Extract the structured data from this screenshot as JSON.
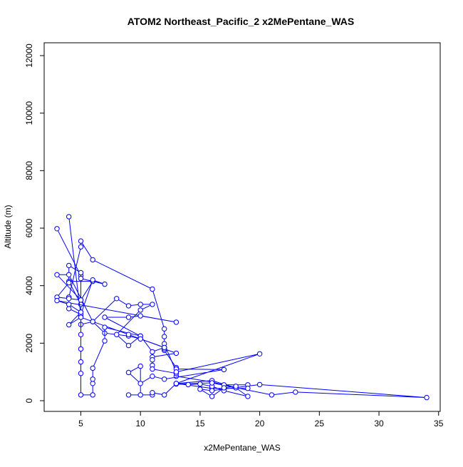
{
  "chart_data": {
    "type": "line",
    "title": "ATOM2 Northeast_Pacific_2 x2MePentane_WAS",
    "xlabel": "x2MePentane_WAS",
    "ylabel": "Altitude (m)",
    "xlim": [
      2.5,
      34.5
    ],
    "ylim": [
      0,
      12000
    ],
    "xticks": [
      5,
      10,
      15,
      20,
      25,
      30,
      35
    ],
    "yticks": [
      0,
      2000,
      4000,
      6000,
      8000,
      10000,
      12000
    ],
    "grid": false,
    "legend": "none",
    "series_color": "#0000ff",
    "series": [
      {
        "points": [
          [
            3,
            5980
          ],
          [
            5,
            4350
          ],
          [
            5,
            3350
          ],
          [
            4,
            4150
          ],
          [
            6,
            4150
          ],
          [
            5,
            3500
          ],
          [
            5,
            2650
          ],
          [
            6,
            2750
          ],
          [
            7,
            2350
          ],
          [
            9,
            2250
          ],
          [
            10,
            2150
          ],
          [
            12,
            1850
          ],
          [
            12,
            1750
          ],
          [
            13,
            1150
          ],
          [
            13,
            850
          ],
          [
            16,
            650
          ],
          [
            17,
            550
          ],
          [
            19,
            550
          ],
          [
            19,
            430
          ],
          [
            16,
            430
          ],
          [
            13,
            600
          ],
          [
            16,
            700
          ],
          [
            18,
            450
          ],
          [
            19,
            150
          ],
          [
            17,
            350
          ],
          [
            16,
            500
          ],
          [
            15,
            580
          ],
          [
            14,
            560
          ],
          [
            13,
            580
          ],
          [
            16,
            620
          ],
          [
            21,
            200
          ],
          [
            23,
            300
          ],
          [
            34,
            110
          ],
          [
            20,
            560
          ],
          [
            16,
            350
          ],
          [
            15,
            400
          ],
          [
            16,
            150
          ],
          [
            17,
            450
          ],
          [
            18,
            500
          ]
        ]
      },
      {
        "points": [
          [
            4,
            6400
          ],
          [
            5,
            2950
          ],
          [
            5,
            2300
          ],
          [
            5,
            1800
          ],
          [
            5,
            1350
          ],
          [
            5,
            950
          ],
          [
            5,
            200
          ],
          [
            6,
            200
          ],
          [
            6,
            600
          ],
          [
            6,
            750
          ],
          [
            6,
            1130
          ],
          [
            7,
            2080
          ],
          [
            7,
            2550
          ],
          [
            10,
            2250
          ],
          [
            11,
            1700
          ],
          [
            12,
            1850
          ],
          [
            12,
            1800
          ],
          [
            13,
            1650
          ],
          [
            11,
            1520
          ],
          [
            11,
            1420
          ],
          [
            11,
            1230
          ],
          [
            11,
            1100
          ],
          [
            13,
            950
          ],
          [
            13,
            1100
          ],
          [
            17,
            1080
          ],
          [
            12,
            750
          ],
          [
            11,
            850
          ],
          [
            10,
            600
          ],
          [
            9,
            980
          ],
          [
            10,
            1200
          ],
          [
            10,
            200
          ],
          [
            9,
            200
          ],
          [
            11,
            200
          ],
          [
            11,
            280
          ],
          [
            12,
            200
          ],
          [
            13,
            600
          ],
          [
            20,
            1630
          ],
          [
            13,
            1000
          ],
          [
            12,
            1980
          ],
          [
            12,
            2230
          ],
          [
            12,
            2500
          ],
          [
            11,
            3880
          ],
          [
            6,
            4900
          ],
          [
            5,
            5550
          ],
          [
            5,
            5350
          ],
          [
            4,
            3600
          ],
          [
            4,
            3200
          ],
          [
            5,
            3000
          ],
          [
            6,
            4200
          ],
          [
            7,
            4050
          ],
          [
            5,
            4250
          ],
          [
            5,
            4450
          ],
          [
            4,
            4700
          ],
          [
            4,
            4100
          ],
          [
            3,
            3600
          ],
          [
            4,
            3550
          ],
          [
            5,
            3500
          ],
          [
            3,
            4380
          ],
          [
            4,
            4380
          ],
          [
            6,
            2750
          ],
          [
            8,
            3550
          ],
          [
            9,
            3300
          ],
          [
            10,
            3350
          ],
          [
            11,
            3350
          ],
          [
            10,
            3150
          ],
          [
            8,
            2300
          ],
          [
            9,
            1920
          ],
          [
            10,
            2250
          ],
          [
            7,
            2900
          ],
          [
            9,
            2900
          ],
          [
            10,
            2950
          ],
          [
            13,
            2730
          ],
          [
            3,
            3480
          ],
          [
            4,
            3350
          ],
          [
            5,
            3080
          ],
          [
            4,
            2640
          ],
          [
            5,
            2900
          ],
          [
            9,
            2300
          ],
          [
            10,
            2150
          ],
          [
            12,
            1850
          ]
        ]
      }
    ]
  }
}
